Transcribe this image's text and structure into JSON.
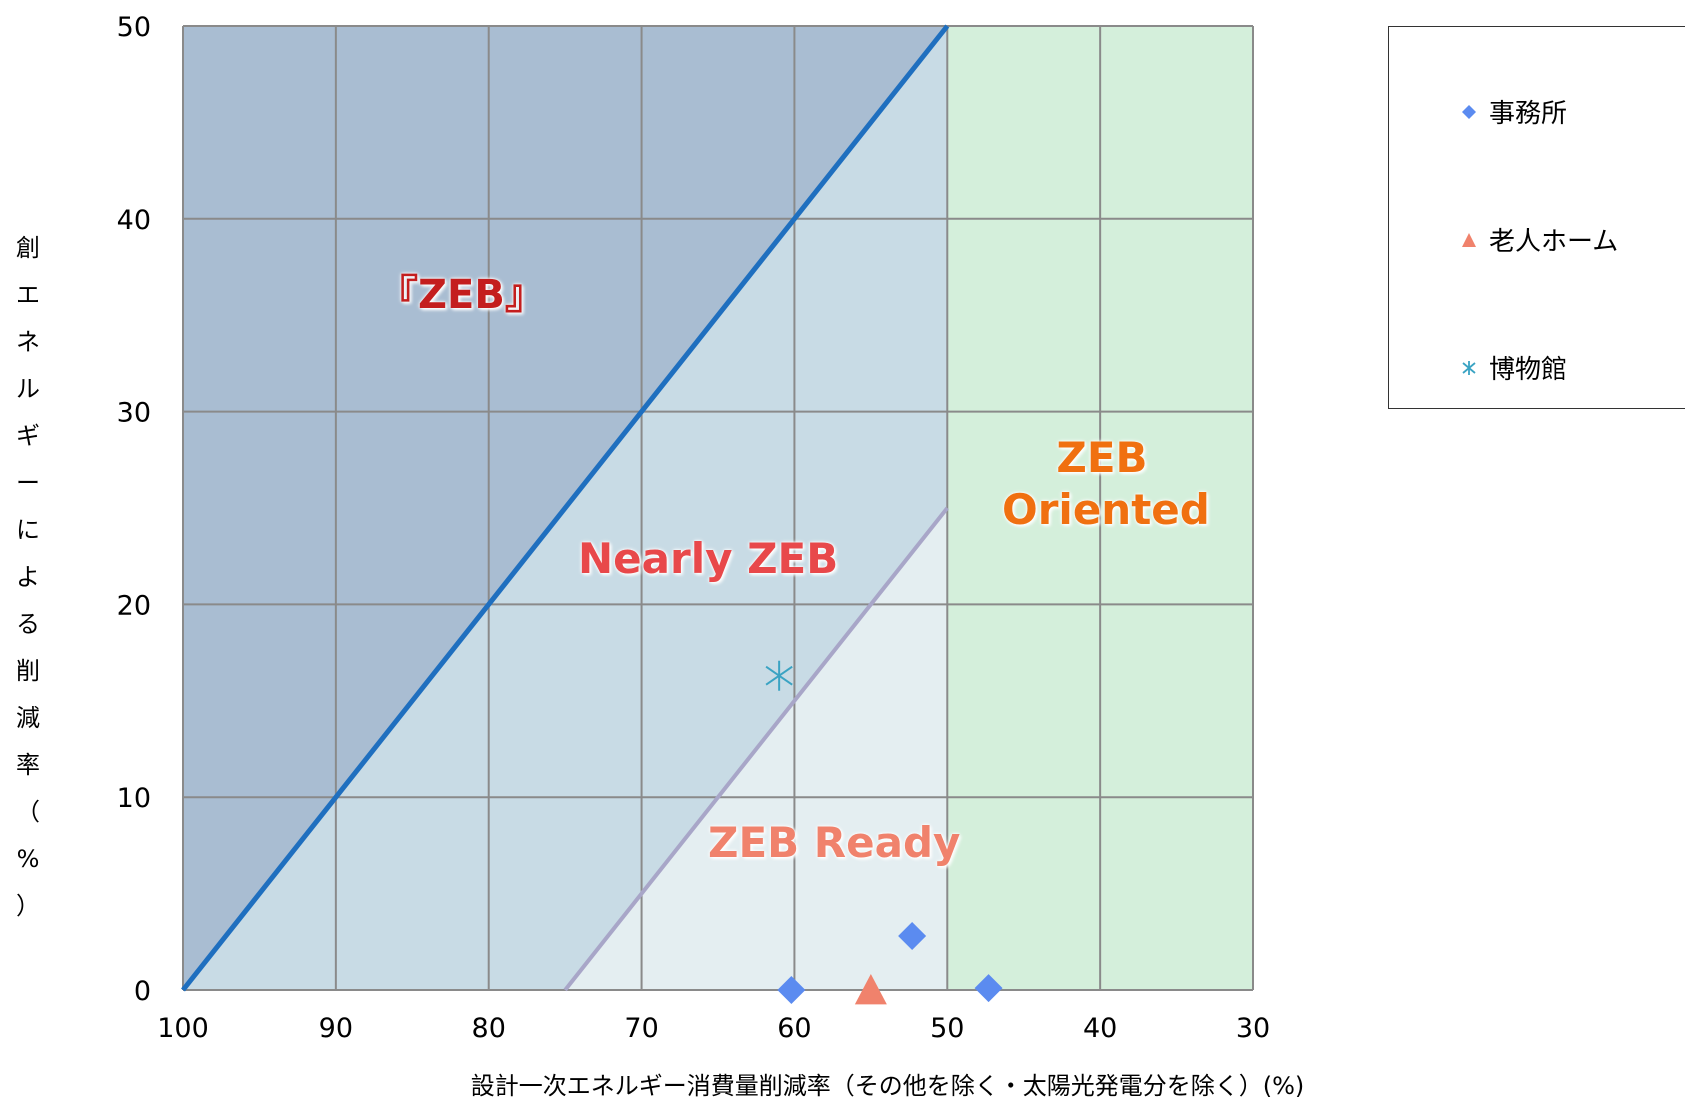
{
  "chart_data": {
    "type": "scatter",
    "x_axis": {
      "min": 30,
      "max": 100,
      "reversed": true,
      "ticks": [
        100,
        90,
        80,
        70,
        60,
        50,
        40,
        30
      ],
      "label": "設計一次エネルギー消費量削減率（その他を除く・太陽光発電分を除く）(%)"
    },
    "y_axis": {
      "min": 0,
      "max": 50,
      "ticks": [
        0,
        10,
        20,
        30,
        40,
        50
      ],
      "label_chars": [
        "創",
        "エ",
        "ネ",
        "ル",
        "ギ",
        "ー",
        "に",
        "よ",
        "る",
        "削",
        "減",
        "率",
        "（",
        "%",
        "）"
      ]
    },
    "grid": true,
    "lines": [
      {
        "name": "zeb_line",
        "points": [
          [
            100,
            0
          ],
          [
            50,
            50
          ]
        ],
        "color": "#1f6fbf"
      },
      {
        "name": "nearly_line",
        "points": [
          [
            75,
            0
          ],
          [
            50,
            25
          ]
        ],
        "color": "#a8a6c8"
      }
    ],
    "regions": {
      "zeb": {
        "label": "『ZEB』",
        "color": "#a9bdd2"
      },
      "nearly": {
        "label": "Nearly ZEB",
        "color": "#c8dbe5"
      },
      "ready": {
        "label": "ZEB Ready",
        "color": "#e4eef1"
      },
      "oriented": {
        "label_line1": "ZEB",
        "label_line2": "Oriented",
        "color": "#d4efdb"
      }
    },
    "series": [
      {
        "name": "事務所",
        "marker": "diamond",
        "color": "#5b8bf0",
        "points": [
          [
            60.2,
            0
          ],
          [
            52.3,
            2.8
          ],
          [
            47.3,
            0.1
          ]
        ]
      },
      {
        "name": "老人ホーム",
        "marker": "triangle",
        "color": "#f0826c",
        "points": [
          [
            55,
            0
          ]
        ]
      },
      {
        "name": "博物館",
        "marker": "asterisk",
        "color": "#3aa3c3",
        "points": [
          [
            61,
            16.3
          ]
        ]
      }
    ]
  },
  "labels": {
    "zeb": "『ZEB』",
    "nearly": "Nearly ZEB",
    "ready": "ZEB Ready",
    "oriented_1": "ZEB",
    "oriented_2": "Oriented"
  },
  "label_colors": {
    "zeb": "#c41e1e",
    "nearly": "#e8484a",
    "ready": "#f0826c",
    "oriented": "#f07010"
  },
  "legend": {
    "items": [
      {
        "name": "事務所"
      },
      {
        "name": "老人ホーム"
      },
      {
        "name": "博物館"
      }
    ]
  }
}
